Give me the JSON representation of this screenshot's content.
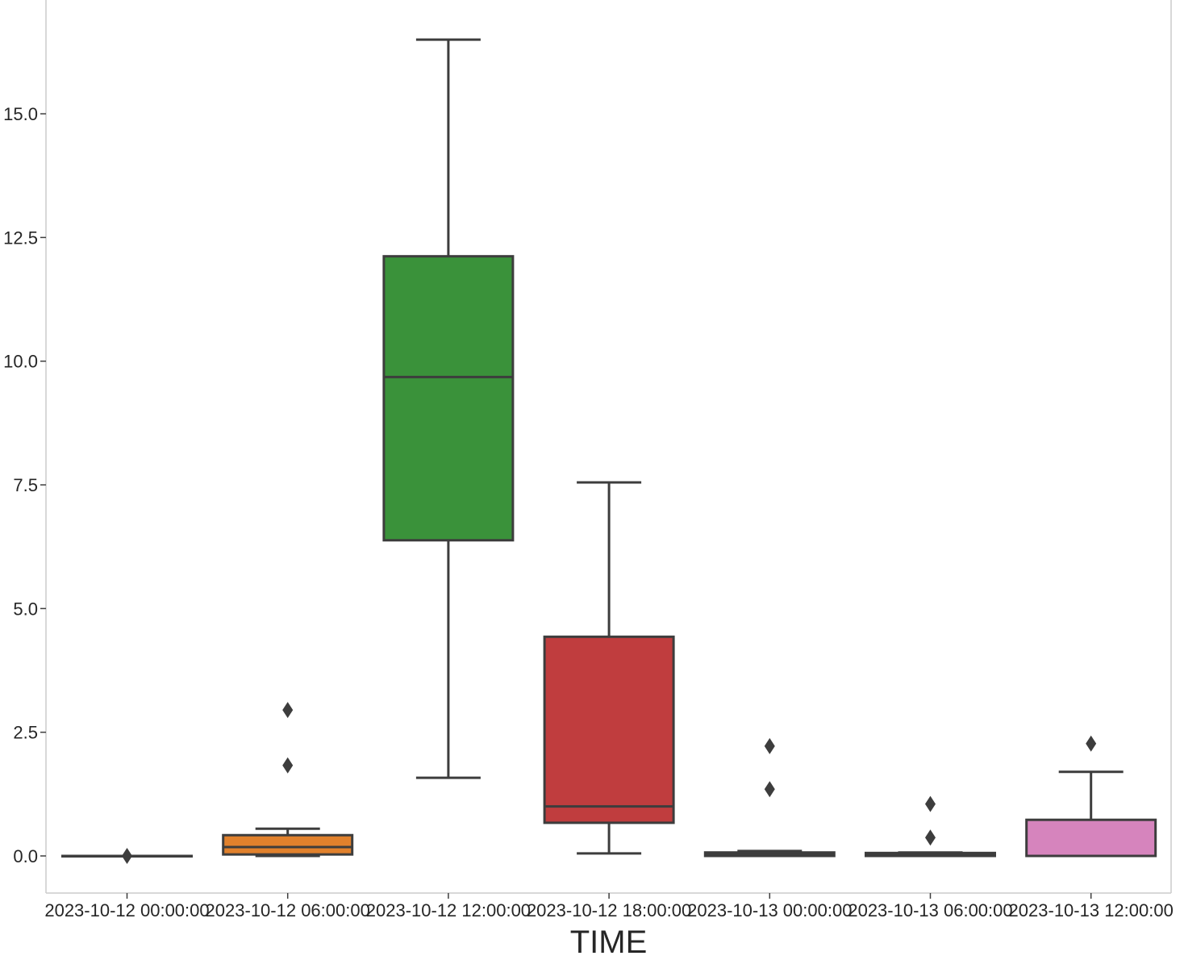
{
  "chart_data": {
    "type": "box",
    "xlabel": "TIME",
    "ylabel": "",
    "ylim": [
      -0.75,
      17.3
    ],
    "yticks": [
      0.0,
      2.5,
      5.0,
      7.5,
      10.0,
      12.5,
      15.0
    ],
    "ytick_labels": [
      "0.0",
      "2.5",
      "5.0",
      "7.5",
      "10.0",
      "12.5",
      "15.0"
    ],
    "grid": false,
    "categories": [
      "2023-10-12 00:00:00",
      "2023-10-12 06:00:00",
      "2023-10-12 12:00:00",
      "2023-10-12 18:00:00",
      "2023-10-13 00:00:00",
      "2023-10-13 06:00:00",
      "2023-10-13 12:00:00"
    ],
    "boxes": [
      {
        "whislo": 0.0,
        "q1": 0.0,
        "med": 0.0,
        "q3": 0.0,
        "whishi": 0.0,
        "fliers": [
          0.0
        ],
        "color": "#4878b8"
      },
      {
        "whislo": 0.0,
        "q1": 0.03,
        "med": 0.18,
        "q3": 0.42,
        "whishi": 0.55,
        "fliers": [
          1.83,
          2.95
        ],
        "color": "#e1812c"
      },
      {
        "whislo": 1.58,
        "q1": 6.38,
        "med": 9.68,
        "q3": 12.12,
        "whishi": 16.5,
        "fliers": [],
        "color": "#3a923a"
      },
      {
        "whislo": 0.05,
        "q1": 0.67,
        "med": 1.0,
        "q3": 4.43,
        "whishi": 7.55,
        "fliers": [],
        "color": "#c03d3e"
      },
      {
        "whislo": 0.0,
        "q1": 0.0,
        "med": 0.03,
        "q3": 0.07,
        "whishi": 0.1,
        "fliers": [
          1.35,
          2.22
        ],
        "color": "#9372b2"
      },
      {
        "whislo": 0.0,
        "q1": 0.0,
        "med": 0.02,
        "q3": 0.06,
        "whishi": 0.07,
        "fliers": [
          0.37,
          1.05
        ],
        "color": "#845b53"
      },
      {
        "whislo": 0.0,
        "q1": 0.0,
        "med": 0.0,
        "q3": 0.73,
        "whishi": 1.7,
        "fliers": [
          2.27
        ],
        "color": "#d684bd"
      }
    ]
  }
}
